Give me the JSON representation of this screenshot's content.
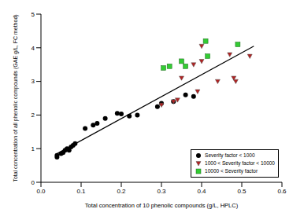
{
  "chart_data": {
    "type": "scatter",
    "x_label": "Total concentration of 10 phenolic compounds (g/L, HPLC)",
    "y_label": "Total concentration of all phenolic compounds (GAE g/L, FC method)",
    "xlim": [
      0,
      0.6
    ],
    "xticks": [
      {
        "value": 0,
        "label": "0.0"
      },
      {
        "value": 0.1,
        "label": "0.1"
      },
      {
        "value": 0.2,
        "label": "0.2"
      },
      {
        "value": 0.3,
        "label": "0.3"
      },
      {
        "value": 0.4,
        "label": "0.4"
      },
      {
        "value": 0.5,
        "label": "0.5"
      },
      {
        "value": 0.6,
        "label": "0.6"
      }
    ],
    "ylim": [
      0,
      5
    ],
    "yticks": [
      0,
      1,
      2,
      3,
      4,
      5
    ],
    "grid": false,
    "legend": "lower right",
    "series": [
      {
        "name": "Severity factor < 1000",
        "color": "#000000",
        "marker": "circle",
        "x": [
          0.04,
          0.04,
          0.05,
          0.055,
          0.06,
          0.065,
          0.07,
          0.075,
          0.08,
          0.085,
          0.11,
          0.13,
          0.14,
          0.16,
          0.19,
          0.2,
          0.22,
          0.24,
          0.29,
          0.3,
          0.33,
          0.36,
          0.38
        ],
        "values": [
          0.75,
          0.8,
          0.85,
          0.88,
          0.95,
          1.0,
          0.95,
          1.05,
          1.1,
          1.15,
          1.6,
          1.7,
          1.75,
          1.9,
          2.05,
          2.03,
          1.97,
          2.0,
          2.25,
          2.35,
          2.4,
          2.6,
          2.55
        ]
      },
      {
        "name": "1000 < Severity factor < 10000",
        "color": "#b22222",
        "marker": "triangle-down",
        "x": [
          0.3,
          0.33,
          0.34,
          0.35,
          0.38,
          0.39,
          0.4,
          0.4,
          0.44,
          0.47,
          0.48,
          0.485,
          0.52
        ],
        "values": [
          2.3,
          2.4,
          2.45,
          3.1,
          3.5,
          2.7,
          4.05,
          3.6,
          3.0,
          3.8,
          3.1,
          3.0,
          3.75
        ]
      },
      {
        "name": "10000 < Severity factor",
        "color": "#33cc33",
        "marker": "square",
        "x": [
          0.305,
          0.32,
          0.35,
          0.36,
          0.41,
          0.415,
          0.49
        ],
        "values": [
          3.4,
          3.45,
          3.6,
          3.45,
          4.2,
          3.75,
          4.1
        ]
      },
      {
        "type": "line",
        "color": "#000000",
        "x": [
          0.04,
          0.53
        ],
        "values": [
          0.85,
          4.05
        ]
      }
    ]
  }
}
